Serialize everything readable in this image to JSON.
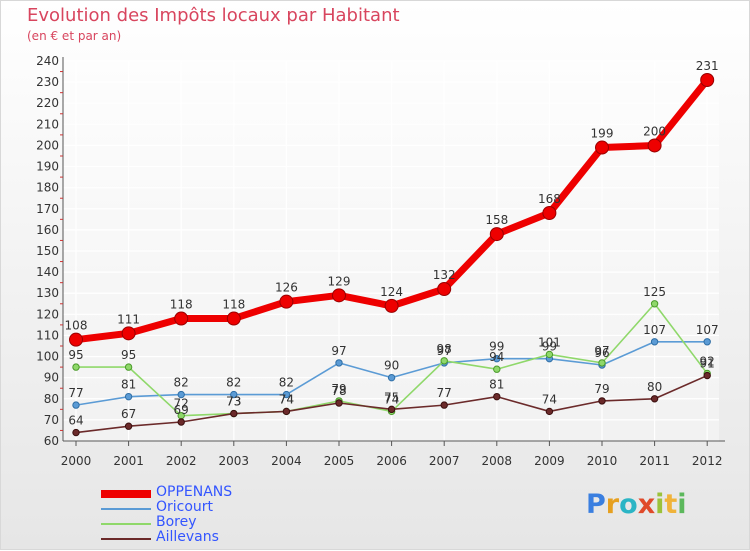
{
  "header": {
    "title": "Evolution des Impôts locaux par Habitant",
    "subtitle": "(en € et par an)"
  },
  "chart_data": {
    "type": "line",
    "title": "Evolution des Impôts locaux par Habitant",
    "subtitle": "(en € et par an)",
    "xlabel": "",
    "ylabel": "",
    "ylim": [
      60,
      240
    ],
    "yticks": [
      60,
      70,
      80,
      90,
      100,
      110,
      120,
      130,
      140,
      150,
      160,
      170,
      180,
      190,
      200,
      210,
      220,
      230,
      240
    ],
    "grid": true,
    "legend_position": "bottom-left",
    "categories": [
      "2000",
      "2001",
      "2002",
      "2003",
      "2004",
      "2005",
      "2006",
      "2007",
      "2008",
      "2009",
      "2010",
      "2011",
      "2012"
    ],
    "series": [
      {
        "name": "OPPENANS",
        "color": "#ee0000",
        "values": [
          108,
          111,
          118,
          118,
          126,
          129,
          124,
          132,
          158,
          168,
          199,
          200,
          231
        ]
      },
      {
        "name": "Oricourt",
        "color": "#5b9bd5",
        "values": [
          77,
          81,
          82,
          82,
          82,
          97,
          90,
          97,
          99,
          99,
          96,
          107,
          107
        ]
      },
      {
        "name": "Borey",
        "color": "#8fd86a",
        "values": [
          95,
          95,
          72,
          73,
          74,
          79,
          74,
          98,
          94,
          101,
          97,
          125,
          92
        ]
      },
      {
        "name": "Aillevans",
        "color": "#6b2a2a",
        "values": [
          64,
          67,
          69,
          73,
          74,
          78,
          75,
          77,
          81,
          74,
          79,
          80,
          91
        ]
      }
    ]
  },
  "logo": {
    "p": "P",
    "r": "r",
    "o": "o",
    "x": "x",
    "i": "i",
    "t": "t",
    "i2": "i"
  }
}
